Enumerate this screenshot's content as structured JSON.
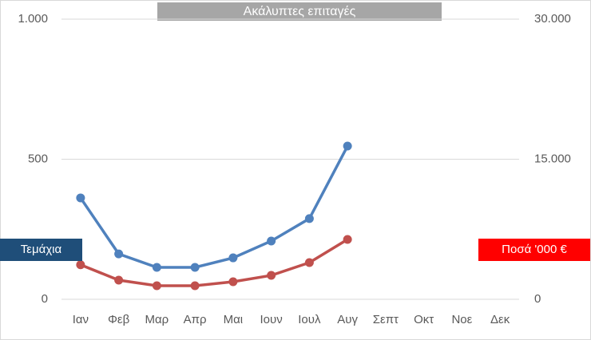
{
  "chart_data": {
    "type": "line",
    "title": "Ακάλυπτες επιταγές",
    "categories": [
      "Ιαν",
      "Φεβ",
      "Μαρ",
      "Απρ",
      "Μαι",
      "Ιουν",
      "Ιουλ",
      "Αυγ",
      "Σεπτ",
      "Οκτ",
      "Νοε",
      "Δεκ"
    ],
    "series": [
      {
        "name": "Τεμάχια",
        "color": "#4f81bd",
        "label_color": "#1f4e79",
        "values": [
          362,
          162,
          114,
          114,
          148,
          208,
          288,
          547,
          null,
          null,
          null,
          null
        ]
      },
      {
        "name": "Ποσά '000 €",
        "color": "#c0504d",
        "label_color": "#ff0000",
        "axis": "y2",
        "values": [
          3700,
          2050,
          1450,
          1450,
          1880,
          2560,
          3930,
          6410,
          null,
          null,
          null,
          null
        ]
      }
    ],
    "ylim": [
      0,
      1000
    ],
    "yticks": [
      0,
      500,
      {
        "value": 1000,
        "label": "1.000"
      }
    ],
    "y2lim": [
      0,
      30000
    ],
    "y2ticks": [
      0,
      {
        "value": 15000,
        "label": "15.000"
      },
      {
        "value": 30000,
        "label": "30.000"
      }
    ],
    "grid": true
  }
}
